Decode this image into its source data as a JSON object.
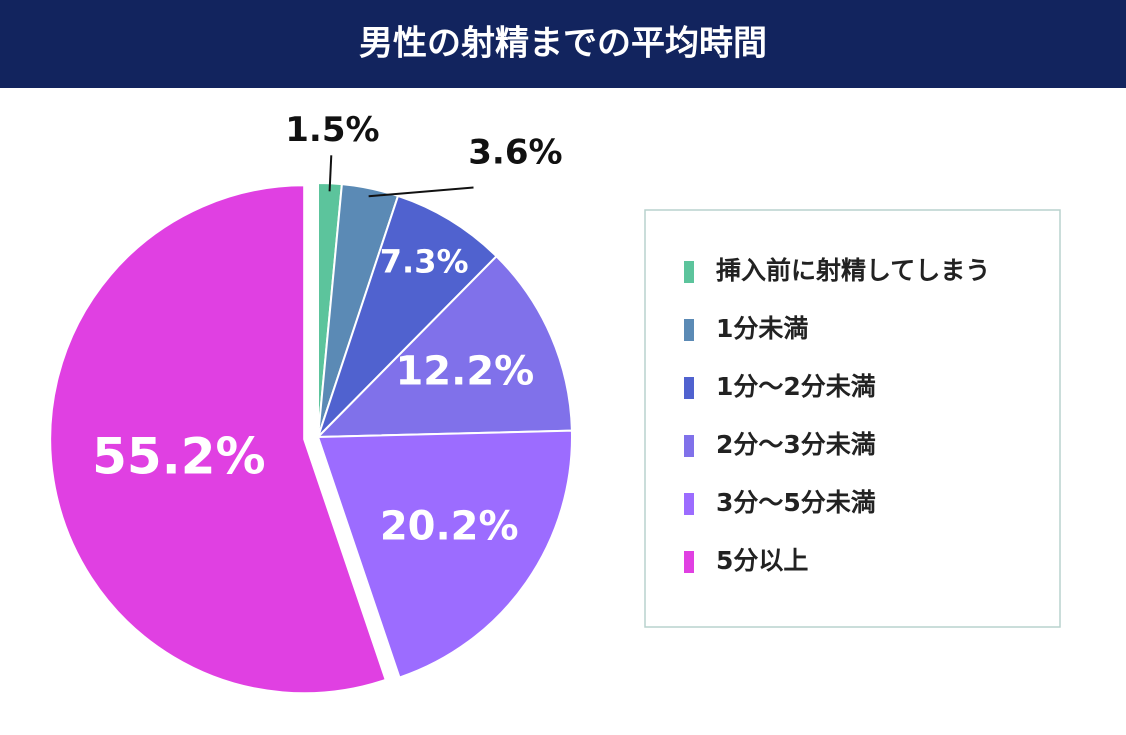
{
  "chart_data": {
    "type": "pie",
    "title": "男性の射精までの平均時間",
    "categories": [
      "挿入前に射精してしまう",
      "1分未満",
      "1分〜2分未満",
      "2分〜3分未満",
      "3分〜5分未満",
      "5分以上"
    ],
    "values": [
      1.5,
      3.6,
      7.3,
      12.2,
      20.2,
      55.2
    ],
    "value_labels": [
      "1.5%",
      "3.6%",
      "7.3%",
      "12.2%",
      "20.2%",
      "55.2%"
    ],
    "colors": [
      "#5cc49c",
      "#5b8ab5",
      "#5062cf",
      "#8071ea",
      "#9c6cff",
      "#e040e2"
    ],
    "legend": "right"
  }
}
